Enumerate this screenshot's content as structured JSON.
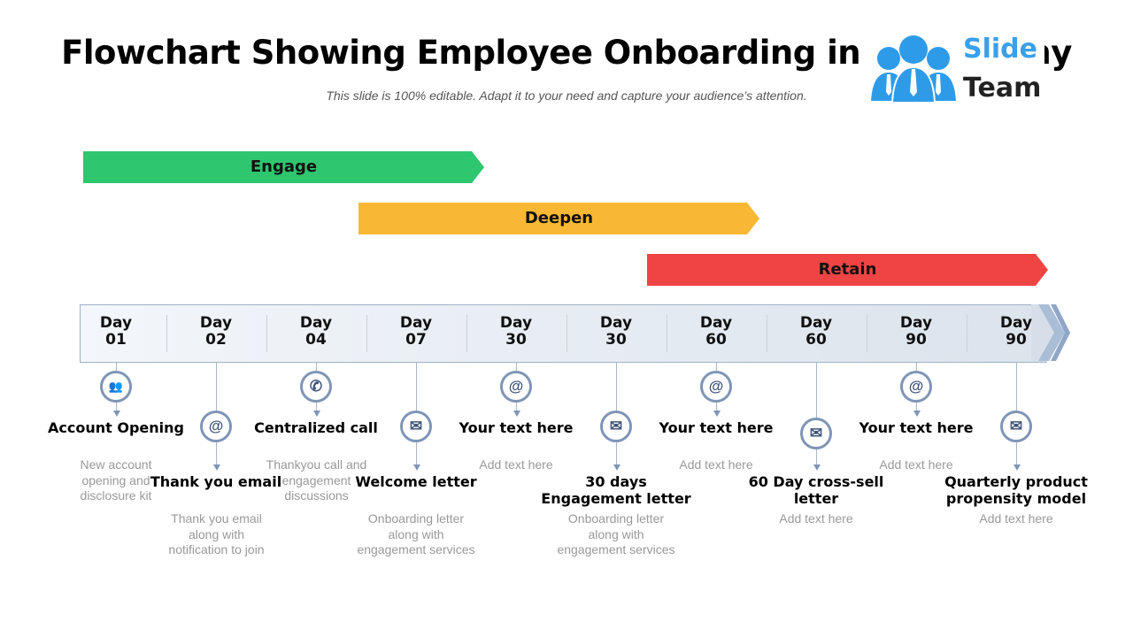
{
  "title": "Flowchart Showing Employee Onboarding in a Company",
  "subtitle": "This slide is 100% editable. Adapt it to your need and capture your audience’s attention.",
  "logo": {
    "line1": "Slide",
    "line2": "Team",
    "color": "#3aa0ea"
  },
  "phases": [
    {
      "label": "Engage",
      "color": "#2ec66f"
    },
    {
      "label": "Deepen",
      "color": "#f9b833"
    },
    {
      "label": "Retain",
      "color": "#ef4444"
    }
  ],
  "steps": [
    {
      "day": "Day",
      "num": "01",
      "icon": "people-icon",
      "title": "Account Opening",
      "desc": "New account opening and disclosure kit"
    },
    {
      "day": "Day",
      "num": "02",
      "icon": "at-sign-icon",
      "title": "Thank you email",
      "desc": "Thank you email along with notification  to join"
    },
    {
      "day": "Day",
      "num": "04",
      "icon": "phone-icon",
      "title": "Centralized call",
      "desc": "Thankyou call and engagement discussions"
    },
    {
      "day": "Day",
      "num": "07",
      "icon": "envelope-icon",
      "title": "Welcome letter",
      "desc": "Onboarding letter along with engagement services"
    },
    {
      "day": "Day",
      "num": "30",
      "icon": "at-sign-icon",
      "title": "Your text here",
      "desc": "Add text here"
    },
    {
      "day": "Day",
      "num": "30",
      "icon": "envelope-icon",
      "title": "30 days Engagement letter",
      "desc": "Onboarding letter along with engagement services"
    },
    {
      "day": "Day",
      "num": "60",
      "icon": "at-sign-icon",
      "title": "Your text here",
      "desc": "Add text here"
    },
    {
      "day": "Day",
      "num": "60",
      "icon": "envelope-icon",
      "title": "60 Day cross-sell letter",
      "desc": "Add text here"
    },
    {
      "day": "Day",
      "num": "90",
      "icon": "at-sign-icon",
      "title": "Your text here",
      "desc": "Add text here"
    },
    {
      "day": "Day",
      "num": "90",
      "icon": "envelope-icon",
      "title": "Quarterly product propensity model",
      "desc": "Add text here"
    }
  ]
}
